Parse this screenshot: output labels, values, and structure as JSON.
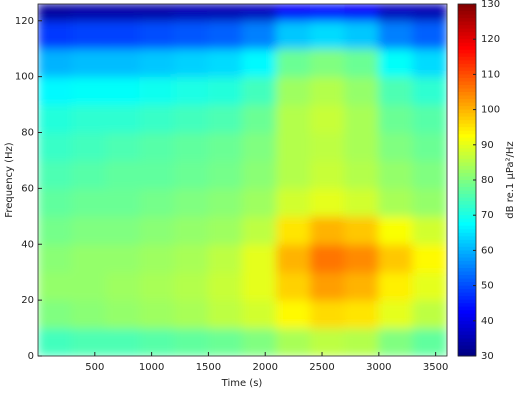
{
  "chart_data": {
    "type": "heatmap",
    "x_label": "Time (s)",
    "y_label": "Frequency (Hz)",
    "colorbar_label": "dB re.1 μPa²/Hz",
    "colormap": "jet",
    "x_bins": [
      0,
      300,
      600,
      900,
      1200,
      1500,
      1800,
      2100,
      2400,
      2700,
      3000,
      3300,
      3600
    ],
    "y_bins": [
      0,
      10,
      20,
      30,
      40,
      50,
      60,
      70,
      80,
      90,
      100,
      110,
      120,
      126
    ],
    "values": [
      [
        74,
        75,
        75,
        76,
        77,
        78,
        80,
        84,
        86,
        85,
        80,
        77
      ],
      [
        80,
        81,
        82,
        83,
        84,
        86,
        88,
        93,
        96,
        95,
        90,
        86
      ],
      [
        82,
        82,
        83,
        84,
        85,
        87,
        90,
        97,
        102,
        100,
        94,
        90
      ],
      [
        81,
        82,
        82,
        83,
        84,
        86,
        90,
        100,
        106,
        104,
        98,
        93
      ],
      [
        79,
        80,
        80,
        81,
        82,
        83,
        86,
        95,
        100,
        98,
        92,
        88
      ],
      [
        77,
        78,
        78,
        79,
        80,
        81,
        83,
        88,
        90,
        88,
        84,
        82
      ],
      [
        75,
        76,
        77,
        77,
        78,
        79,
        81,
        85,
        87,
        85,
        82,
        80
      ],
      [
        73,
        74,
        75,
        76,
        77,
        78,
        80,
        85,
        86,
        84,
        80,
        78
      ],
      [
        71,
        72,
        72,
        73,
        74,
        75,
        78,
        85,
        87,
        84,
        78,
        76
      ],
      [
        67,
        68,
        68,
        69,
        70,
        71,
        74,
        83,
        85,
        82,
        75,
        72
      ],
      [
        60,
        61,
        61,
        62,
        63,
        64,
        67,
        78,
        80,
        78,
        68,
        64
      ],
      [
        48,
        49,
        49,
        50,
        51,
        52,
        55,
        62,
        64,
        62,
        55,
        52
      ],
      [
        33,
        34,
        34,
        34,
        35,
        35,
        36,
        42,
        44,
        42,
        36,
        35
      ]
    ],
    "xlim": [
      0,
      3600
    ],
    "xticks": [
      500,
      1000,
      1500,
      2000,
      2500,
      3000,
      3500
    ],
    "ylim": [
      0,
      126
    ],
    "yticks": [
      0,
      20,
      40,
      60,
      80,
      100,
      120
    ],
    "clim": [
      30,
      130
    ],
    "cticks": [
      30,
      40,
      50,
      60,
      70,
      80,
      90,
      100,
      110,
      120,
      130
    ]
  }
}
